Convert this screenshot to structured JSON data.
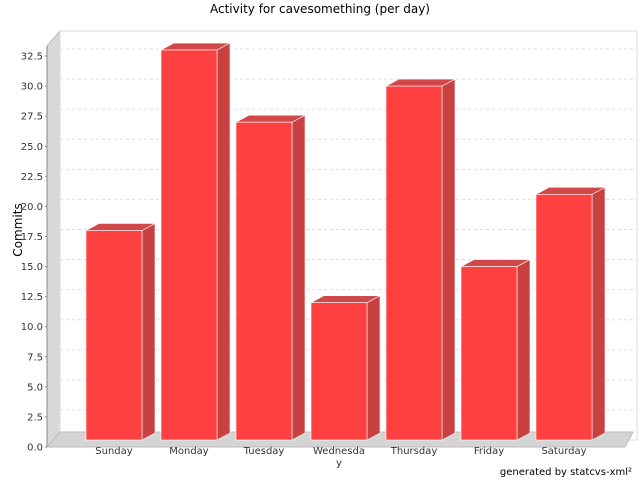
{
  "chart_data": {
    "type": "bar",
    "title": "Activity for cavesomething (per day)",
    "xlabel": "",
    "ylabel": "Commits",
    "categories": [
      "Sunday",
      "Monday",
      "Tuesday",
      "Wednesday",
      "Thursday",
      "Friday",
      "Saturday"
    ],
    "category_display": [
      [
        "Sunday"
      ],
      [
        "Monday"
      ],
      [
        "Tuesday"
      ],
      [
        "Wednesda",
        "y"
      ],
      [
        "Thursday"
      ],
      [
        "Friday"
      ],
      [
        "Saturday"
      ]
    ],
    "values": [
      18,
      33,
      27,
      12,
      30,
      15,
      21
    ],
    "ylim": [
      0,
      34
    ],
    "yticks": [
      "0.0",
      "2.5",
      "5.0",
      "7.5",
      "10.0",
      "12.5",
      "15.0",
      "17.5",
      "20.0",
      "22.5",
      "25.0",
      "27.5",
      "30.0",
      "32.5"
    ],
    "grid": true,
    "legend": "none",
    "bar_color": "#ff4040",
    "bar_side_color": "#c84040",
    "bar_top_color": "#d04848"
  },
  "footer": "generated by statcvs-xml²"
}
